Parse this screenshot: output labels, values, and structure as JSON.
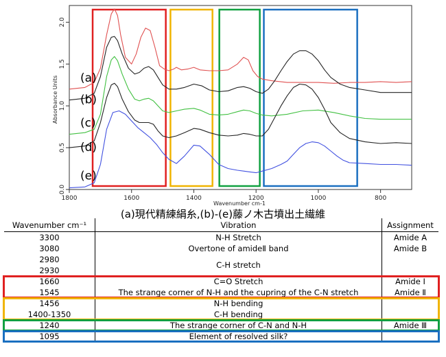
{
  "chart_data": {
    "type": "line",
    "xlabel": "Wavenumber cm-1",
    "ylabel": "Absorbance Units",
    "xlim": [
      1800,
      700
    ],
    "ylim": [
      0,
      2.2
    ],
    "x_reversed": true,
    "x_ticks": [
      1800,
      1600,
      1400,
      1200,
      1000,
      800
    ],
    "y_ticks": [
      0.0,
      0.5,
      1.0,
      1.5,
      2.0
    ],
    "y_tick_labels": [
      "0.0",
      "0.5",
      "1.0",
      "1.5",
      "2.0"
    ],
    "grid": false,
    "series": [
      {
        "name": "(a)",
        "color": "#e05050",
        "x": [
          1800,
          1750,
          1720,
          1700,
          1680,
          1665,
          1655,
          1645,
          1635,
          1620,
          1600,
          1585,
          1570,
          1555,
          1540,
          1525,
          1510,
          1495,
          1480,
          1465,
          1456,
          1440,
          1420,
          1400,
          1380,
          1350,
          1320,
          1290,
          1260,
          1240,
          1225,
          1210,
          1195,
          1180,
          1150,
          1100,
          1050,
          1000,
          950,
          900,
          850,
          800,
          750,
          700
        ],
        "y": [
          1.2,
          1.22,
          1.28,
          1.45,
          1.85,
          2.1,
          2.16,
          2.08,
          1.85,
          1.58,
          1.5,
          1.62,
          1.82,
          1.93,
          1.9,
          1.7,
          1.48,
          1.44,
          1.42,
          1.44,
          1.46,
          1.43,
          1.44,
          1.46,
          1.43,
          1.42,
          1.42,
          1.43,
          1.5,
          1.58,
          1.55,
          1.42,
          1.35,
          1.32,
          1.3,
          1.28,
          1.28,
          1.28,
          1.27,
          1.28,
          1.28,
          1.29,
          1.28,
          1.29
        ]
      },
      {
        "name": "(b)",
        "color": "#222222",
        "x": [
          1800,
          1750,
          1720,
          1700,
          1680,
          1665,
          1655,
          1645,
          1630,
          1610,
          1590,
          1575,
          1560,
          1545,
          1530,
          1515,
          1500,
          1480,
          1456,
          1430,
          1400,
          1375,
          1350,
          1320,
          1290,
          1260,
          1240,
          1220,
          1200,
          1180,
          1160,
          1140,
          1120,
          1100,
          1080,
          1060,
          1040,
          1020,
          1000,
          980,
          960,
          930,
          900,
          850,
          800,
          750,
          700
        ],
        "y": [
          1.07,
          1.09,
          1.15,
          1.35,
          1.7,
          1.82,
          1.83,
          1.78,
          1.62,
          1.45,
          1.38,
          1.4,
          1.45,
          1.47,
          1.43,
          1.34,
          1.25,
          1.2,
          1.2,
          1.22,
          1.26,
          1.24,
          1.19,
          1.17,
          1.18,
          1.22,
          1.23,
          1.21,
          1.17,
          1.15,
          1.2,
          1.3,
          1.42,
          1.53,
          1.62,
          1.66,
          1.66,
          1.62,
          1.54,
          1.43,
          1.34,
          1.26,
          1.22,
          1.19,
          1.16,
          1.16,
          1.16
        ]
      },
      {
        "name": "(c)",
        "color": "#40c040",
        "x": [
          1800,
          1750,
          1720,
          1700,
          1680,
          1665,
          1655,
          1645,
          1630,
          1610,
          1590,
          1575,
          1560,
          1545,
          1530,
          1515,
          1500,
          1480,
          1456,
          1430,
          1400,
          1380,
          1350,
          1320,
          1290,
          1260,
          1240,
          1220,
          1200,
          1180,
          1150,
          1100,
          1050,
          1000,
          950,
          900,
          850,
          800,
          750,
          700
        ],
        "y": [
          0.66,
          0.68,
          0.72,
          0.9,
          1.35,
          1.55,
          1.59,
          1.54,
          1.38,
          1.2,
          1.08,
          1.06,
          1.08,
          1.09,
          1.06,
          1.0,
          0.94,
          0.92,
          0.94,
          0.96,
          0.97,
          0.95,
          0.9,
          0.89,
          0.9,
          0.93,
          0.95,
          0.94,
          0.91,
          0.89,
          0.88,
          0.9,
          0.94,
          0.95,
          0.92,
          0.88,
          0.85,
          0.84,
          0.84,
          0.84
        ]
      },
      {
        "name": "(d)",
        "color": "#222222",
        "x": [
          1800,
          1750,
          1720,
          1700,
          1680,
          1665,
          1655,
          1645,
          1630,
          1610,
          1590,
          1575,
          1560,
          1545,
          1530,
          1515,
          1500,
          1480,
          1456,
          1430,
          1400,
          1380,
          1350,
          1320,
          1290,
          1260,
          1240,
          1220,
          1200,
          1180,
          1160,
          1140,
          1120,
          1100,
          1080,
          1060,
          1040,
          1020,
          1000,
          980,
          960,
          930,
          900,
          850,
          800,
          750,
          700
        ],
        "y": [
          0.5,
          0.52,
          0.58,
          0.8,
          1.1,
          1.25,
          1.27,
          1.23,
          1.08,
          0.93,
          0.83,
          0.8,
          0.8,
          0.8,
          0.78,
          0.7,
          0.64,
          0.62,
          0.64,
          0.68,
          0.73,
          0.72,
          0.68,
          0.65,
          0.64,
          0.65,
          0.67,
          0.66,
          0.64,
          0.64,
          0.72,
          0.86,
          1.0,
          1.12,
          1.22,
          1.26,
          1.25,
          1.2,
          1.1,
          0.96,
          0.8,
          0.68,
          0.61,
          0.57,
          0.55,
          0.56,
          0.55
        ]
      },
      {
        "name": "(e)",
        "color": "#4050e0",
        "x": [
          1800,
          1750,
          1720,
          1700,
          1680,
          1660,
          1640,
          1620,
          1600,
          1580,
          1560,
          1540,
          1520,
          1500,
          1480,
          1456,
          1430,
          1400,
          1380,
          1350,
          1320,
          1290,
          1260,
          1240,
          1220,
          1200,
          1180,
          1150,
          1120,
          1100,
          1080,
          1060,
          1040,
          1020,
          1000,
          980,
          960,
          940,
          920,
          900,
          850,
          800,
          750,
          700
        ],
        "y": [
          0.02,
          0.03,
          0.08,
          0.3,
          0.72,
          0.92,
          0.94,
          0.9,
          0.82,
          0.74,
          0.68,
          0.62,
          0.54,
          0.44,
          0.36,
          0.31,
          0.4,
          0.53,
          0.52,
          0.42,
          0.3,
          0.25,
          0.23,
          0.22,
          0.21,
          0.2,
          0.22,
          0.25,
          0.3,
          0.34,
          0.42,
          0.5,
          0.55,
          0.57,
          0.56,
          0.52,
          0.46,
          0.4,
          0.35,
          0.32,
          0.31,
          0.3,
          0.3,
          0.29
        ]
      }
    ],
    "sample_labels": [
      {
        "text": "(a)",
        "y": 1.34
      },
      {
        "text": "(b)",
        "y": 1.08
      },
      {
        "text": "(c)",
        "y": 0.8
      },
      {
        "text": "(d)",
        "y": 0.51
      },
      {
        "text": "(e)",
        "y": 0.17
      }
    ],
    "regions": [
      {
        "color": "#e02020",
        "x_from": 1725,
        "x_to": 1490
      },
      {
        "color": "#f0b400",
        "x_from": 1475,
        "x_to": 1340
      },
      {
        "color": "#10a040",
        "x_from": 1318,
        "x_to": 1188
      },
      {
        "color": "#1a6fc0",
        "x_from": 1175,
        "x_to": 875
      }
    ]
  },
  "caption": "(a)現代精練絹糸,(b)-(e)藤ノ木古墳出土繊維",
  "table": {
    "headers": [
      "Wavenumber cm⁻¹",
      "Vibration",
      "Assignment"
    ],
    "rows": [
      {
        "wavenumber": "3300",
        "vibration": "N-H Stretch",
        "assignment": "Amide A"
      },
      {
        "wavenumber": "3080",
        "vibration": "Overtone of amideⅡ band",
        "assignment": "Amide B"
      },
      {
        "wavenumber": "2980",
        "vibration": "",
        "assignment": ""
      },
      {
        "wavenumber": "2930",
        "vibration": "",
        "assignment": ""
      },
      {
        "wavenumber": "1660",
        "vibration": "C=O Stretch",
        "assignment": "Amide Ⅰ"
      },
      {
        "wavenumber": "1545",
        "vibration": "The strange corner of N-H and the cupring of the C-N stretch",
        "assignment": "Amide Ⅱ"
      },
      {
        "wavenumber": "1456",
        "vibration": "N-H bending",
        "assignment": ""
      },
      {
        "wavenumber": "1400-1350",
        "vibration": "C-H bending",
        "assignment": ""
      },
      {
        "wavenumber": "1240",
        "vibration": "The strange corner of C-N and N-H",
        "assignment": "Amide Ⅲ"
      },
      {
        "wavenumber": "1095",
        "vibration": "Element of resolved silk?",
        "assignment": ""
      }
    ],
    "merged_vibration_ch": "C-H stretch",
    "highlights": [
      {
        "color": "#e02020",
        "rows": [
          4,
          5
        ]
      },
      {
        "color": "#f0b400",
        "rows": [
          6,
          7
        ]
      },
      {
        "color": "#10a040",
        "rows": [
          8,
          8
        ]
      },
      {
        "color": "#1a6fc0",
        "rows": [
          9,
          9
        ]
      }
    ]
  }
}
